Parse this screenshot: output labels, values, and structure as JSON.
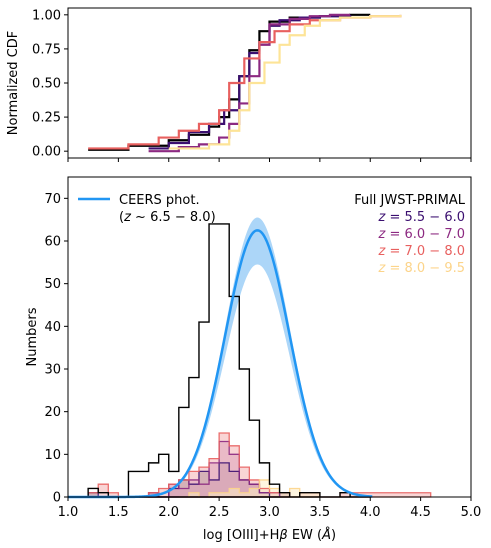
{
  "chart_data": [
    {
      "type": "line",
      "panel": "cdf",
      "ylabel": "Normalized CDF",
      "xlim": [
        1.0,
        5.0
      ],
      "ylim": [
        -0.05,
        1.05
      ],
      "yticks": [
        0.0,
        0.25,
        0.5,
        0.75,
        1.0
      ],
      "ytick_labels": [
        "0.00",
        "0.25",
        "0.50",
        "0.75",
        "1.00"
      ],
      "grid": false,
      "series": [
        {
          "color": "#000000",
          "x": [
            1.2,
            1.6,
            2.0,
            2.2,
            2.4,
            2.5,
            2.6,
            2.7,
            2.8,
            2.9,
            3.0,
            3.2,
            3.5,
            3.8,
            4.0
          ],
          "y": [
            0.01,
            0.04,
            0.08,
            0.12,
            0.18,
            0.25,
            0.38,
            0.55,
            0.74,
            0.88,
            0.95,
            0.98,
            0.99,
            1.0,
            1.0
          ]
        },
        {
          "color": "#3b0f70",
          "x": [
            1.8,
            2.0,
            2.2,
            2.4,
            2.55,
            2.7,
            2.8,
            2.9,
            3.0,
            3.1,
            3.3,
            3.5,
            3.8
          ],
          "y": [
            0.02,
            0.06,
            0.14,
            0.2,
            0.3,
            0.55,
            0.72,
            0.8,
            0.92,
            0.96,
            0.98,
            0.99,
            1.0
          ]
        },
        {
          "color": "#8c2981",
          "x": [
            1.8,
            2.1,
            2.3,
            2.5,
            2.6,
            2.7,
            2.8,
            2.9,
            3.0,
            3.2,
            3.4,
            3.6,
            3.8
          ],
          "y": [
            0.0,
            0.03,
            0.05,
            0.1,
            0.2,
            0.35,
            0.55,
            0.78,
            0.93,
            0.97,
            0.99,
            1.0,
            1.0
          ]
        },
        {
          "color": "#e8605f",
          "x": [
            1.2,
            1.6,
            1.9,
            2.1,
            2.3,
            2.5,
            2.6,
            2.75,
            2.9,
            3.05,
            3.2,
            3.4,
            3.7,
            4.0,
            4.3
          ],
          "y": [
            0.02,
            0.05,
            0.1,
            0.15,
            0.2,
            0.3,
            0.5,
            0.68,
            0.8,
            0.88,
            0.93,
            0.96,
            0.98,
            0.99,
            1.0
          ]
        },
        {
          "color": "#fde497",
          "x": [
            2.0,
            2.4,
            2.6,
            2.7,
            2.8,
            2.95,
            3.1,
            3.2,
            3.35,
            3.5,
            3.7,
            4.0,
            4.3
          ],
          "y": [
            0.02,
            0.05,
            0.15,
            0.3,
            0.5,
            0.65,
            0.78,
            0.85,
            0.92,
            0.96,
            0.98,
            0.99,
            1.0
          ]
        }
      ]
    },
    {
      "type": "bar",
      "panel": "histogram",
      "xlabel": "log [OIII]+Hβ EW (Å)",
      "xlabel_parts": [
        "log [OIII]+H",
        "β",
        " EW (",
        "Å",
        ")"
      ],
      "ylabel": "Numbers",
      "xlim": [
        1.0,
        5.0
      ],
      "ylim": [
        0,
        75
      ],
      "xticks": [
        1.0,
        1.5,
        2.0,
        2.5,
        3.0,
        3.5,
        4.0,
        4.5,
        5.0
      ],
      "xtick_labels": [
        "1.0",
        "1.5",
        "2.0",
        "2.5",
        "3.0",
        "3.5",
        "4.0",
        "4.5",
        "5.0"
      ],
      "yticks": [
        0,
        10,
        20,
        30,
        40,
        50,
        60,
        70
      ],
      "ytick_labels": [
        "0",
        "10",
        "20",
        "30",
        "40",
        "50",
        "60",
        "70"
      ],
      "grid": false,
      "legend_left": {
        "position": "top-left",
        "line1": "CEERS phot.",
        "line2_parts": [
          "(",
          "z",
          " ~ 6.5 − 8.0)"
        ],
        "color": "#2196f3"
      },
      "legend_right": {
        "position": "top-right",
        "title": "Full JWST-PRIMAL",
        "entries": [
          {
            "z": "z",
            "range": " = 5.5 − 6.0",
            "color": "#3b0f70"
          },
          {
            "z": "z",
            "range": " = 6.0 − 7.0",
            "color": "#8c2981"
          },
          {
            "z": "z",
            "range": " = 7.0 − 8.0",
            "color": "#e8605f"
          },
          {
            "z": "z",
            "range": " = 8.0 − 9.5",
            "color": "#fcd48a"
          }
        ]
      },
      "bin_width": 0.1,
      "full_sample_hist": {
        "color": "#000000",
        "edges_start": 1.2,
        "counts": [
          2,
          1,
          0,
          0,
          6,
          6,
          8,
          10,
          6,
          21,
          28,
          41,
          64,
          64,
          47,
          30,
          18,
          8,
          3,
          1,
          0,
          1,
          1,
          0,
          0,
          1,
          0,
          0
        ]
      },
      "redshift_hists": [
        {
          "color": "#3b0f70",
          "fill": "#6e6f87",
          "edges_start": 1.2,
          "counts": [
            1,
            0,
            0,
            0,
            0,
            0,
            1,
            0,
            2,
            4,
            3,
            6,
            4,
            8,
            6,
            4,
            3,
            1,
            0,
            1
          ]
        },
        {
          "color": "#8c2981",
          "fill": "#c291c7",
          "edges_start": 1.8,
          "counts": [
            1,
            0,
            3,
            2,
            4,
            3,
            8,
            13,
            10,
            4,
            3,
            1,
            1
          ]
        },
        {
          "color": "#e8605f",
          "fill": "#f4b3b2",
          "edges_start": 1.2,
          "counts": [
            1,
            3,
            1,
            0,
            0,
            0,
            1,
            2,
            3,
            4,
            6,
            7,
            9,
            15,
            12,
            7,
            4,
            2,
            1,
            1,
            0,
            1,
            1,
            0,
            0,
            1,
            1,
            1,
            1,
            1,
            1,
            1,
            1,
            1
          ]
        },
        {
          "color": "#fcd48a",
          "fill": "#fdecc6",
          "edges_start": 2.1,
          "counts": [
            0,
            1,
            0,
            1,
            1,
            2,
            1,
            2,
            4,
            2,
            1,
            2,
            1,
            1
          ]
        }
      ],
      "ceers_curve": {
        "color": "#2196f3",
        "peak_x": 2.88,
        "peak_y": 62.5,
        "sigma": 0.32,
        "band_upper_peak": 65.5,
        "band_lower_peak": 54.5,
        "band_color": "#90c8f5"
      }
    }
  ]
}
